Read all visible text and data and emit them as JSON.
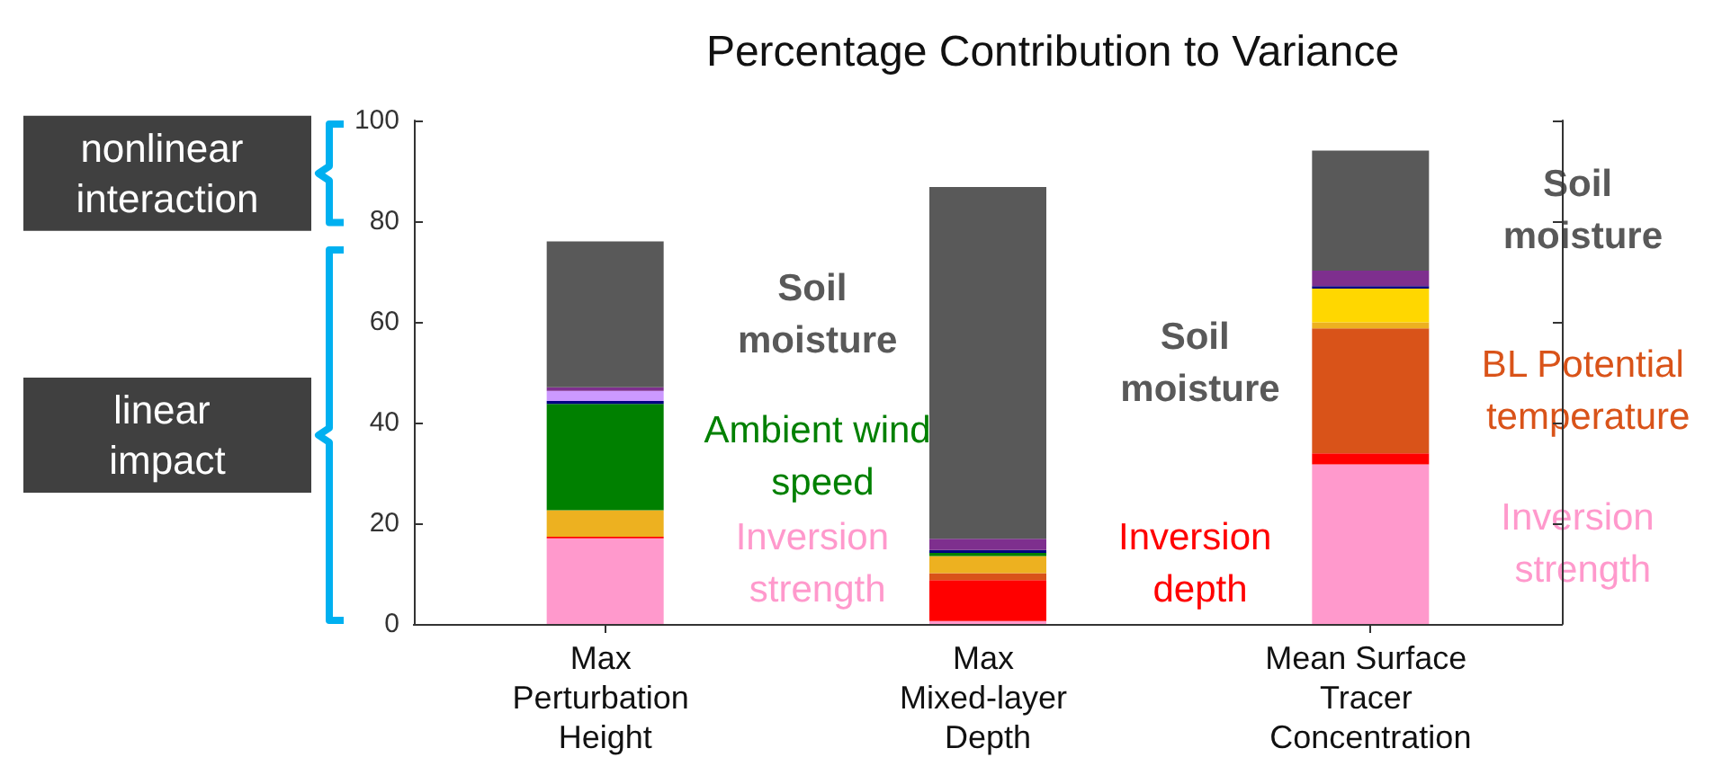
{
  "chart_data": {
    "type": "bar",
    "title": "Percentage Contribution to Variance",
    "stacked": true,
    "categories": [
      "Max Perturbation Height",
      "Max Mixed-layer Depth",
      "Mean Surface Tracer Concentration"
    ],
    "series": [
      {
        "name": "Inversion strength",
        "color": "#ff99cc",
        "values": [
          17,
          0.6,
          31.7
        ]
      },
      {
        "name": "Inversion depth",
        "color": "#ff0000",
        "values": [
          0.3,
          8.1,
          2.2
        ]
      },
      {
        "name": "BL Potential temperature",
        "color": "#d95319",
        "values": [
          0,
          1.4,
          24.8
        ]
      },
      {
        "color": "#edb120",
        "values": [
          5.3,
          3.4,
          1.2
        ]
      },
      {
        "color": "#ffd700",
        "values": [
          0,
          0,
          6.7
        ]
      },
      {
        "name": "Ambient wind speed",
        "color": "#008000",
        "values": [
          21.1,
          0.6,
          0
        ]
      },
      {
        "color": "#000080",
        "values": [
          0.6,
          0.6,
          0.5
        ]
      },
      {
        "color": "#cc99ff",
        "values": [
          2,
          0,
          0
        ]
      },
      {
        "color": "#7e2f8e",
        "values": [
          0.7,
          2.2,
          3.1
        ]
      },
      {
        "name": "Soil moisture",
        "color": "#595959",
        "values": [
          29,
          69.9,
          23.8
        ]
      }
    ],
    "ylim": [
      0,
      100
    ],
    "yticks": [
      0,
      20,
      40,
      60,
      80,
      100
    ],
    "grid": false,
    "legend": false,
    "annotations": [
      "nonlinear interaction",
      "linear impact"
    ]
  }
}
